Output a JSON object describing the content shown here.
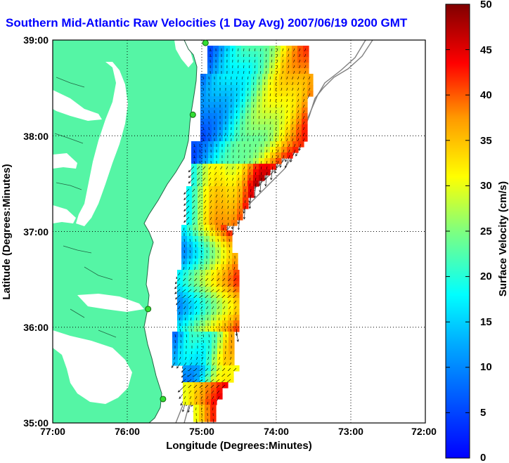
{
  "title": "Southern Mid-Atlantic Raw Velocities (1 Day Avg) 2007/06/19 0200 GMT",
  "x_axis": {
    "label": "Longitude (Degrees:Minutes)",
    "ticks": [
      "77:00",
      "76:00",
      "75:00",
      "74:00",
      "73:00",
      "72:00"
    ]
  },
  "y_axis": {
    "label": "Latitude (Degrees:Minutes)",
    "ticks": [
      "39:00",
      "38:00",
      "37:00",
      "36:00",
      "35:00"
    ]
  },
  "colorbar": {
    "label": "Surface Velocity (cm/s)",
    "ticks": [
      "50",
      "45",
      "40",
      "35",
      "30",
      "25",
      "20",
      "15",
      "10",
      "5",
      "0"
    ],
    "min": 0,
    "max": 50
  },
  "colors": {
    "land": "#55f5a5",
    "water": "#ffffff",
    "title": "#0000ff",
    "station": "#33dd33"
  },
  "grid": "dotted",
  "stations": [
    {
      "lon": -74.95,
      "lat": 38.97
    },
    {
      "lon": -75.12,
      "lat": 38.22
    },
    {
      "lon": -75.72,
      "lat": 36.19
    },
    {
      "lon": -75.52,
      "lat": 35.25
    }
  ]
}
